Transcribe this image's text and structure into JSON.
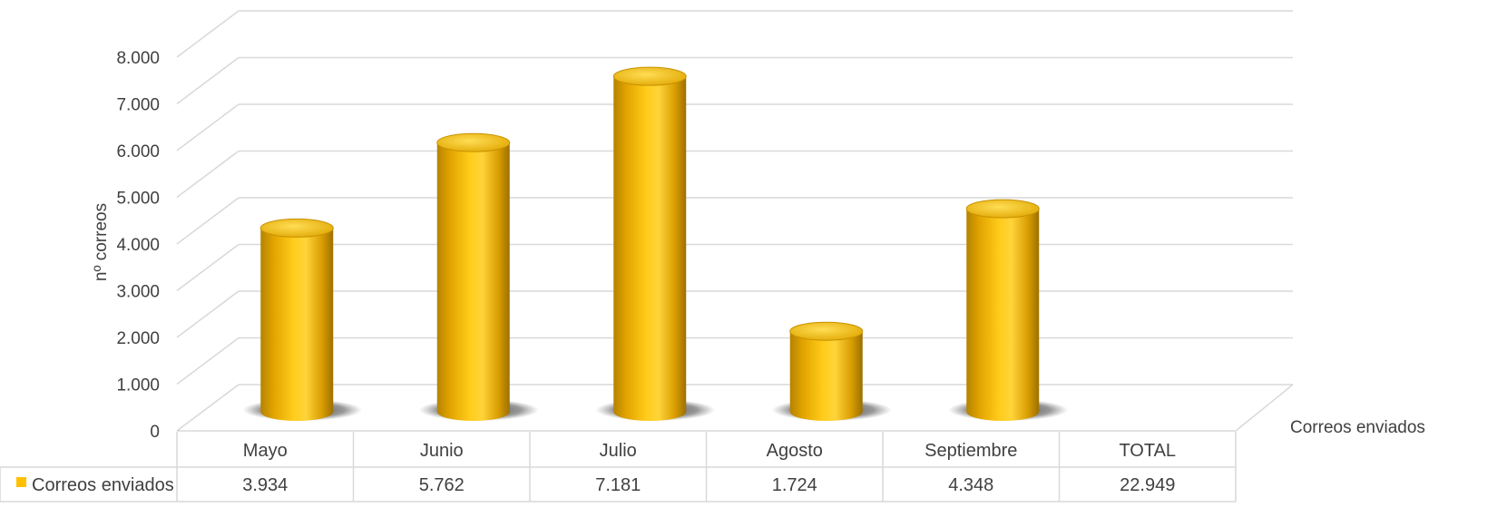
{
  "chart_data": {
    "type": "bar",
    "style": "3d-cylinder",
    "categories": [
      "Mayo",
      "Junio",
      "Julio",
      "Agosto",
      "Septiembre",
      "TOTAL"
    ],
    "series": [
      {
        "name": "Correos enviados",
        "values": [
          3934,
          5762,
          7181,
          1724,
          4348,
          22949
        ],
        "value_labels": [
          "3.934",
          "5.762",
          "7.181",
          "1.724",
          "4.348",
          "22.949"
        ],
        "plotted": [
          true,
          true,
          true,
          true,
          true,
          false
        ],
        "color": "#ffc000"
      }
    ],
    "ylabel": "nº correos",
    "depth_label": "Correos enviados",
    "ylim": [
      0,
      8000
    ],
    "yticks": [
      0,
      1000,
      2000,
      3000,
      4000,
      5000,
      6000,
      7000,
      8000
    ],
    "ytick_labels": [
      "0",
      "1.000",
      "2.000",
      "3.000",
      "4.000",
      "5.000",
      "6.000",
      "7.000",
      "8.000"
    ],
    "grid": true,
    "legend": "data-table"
  }
}
